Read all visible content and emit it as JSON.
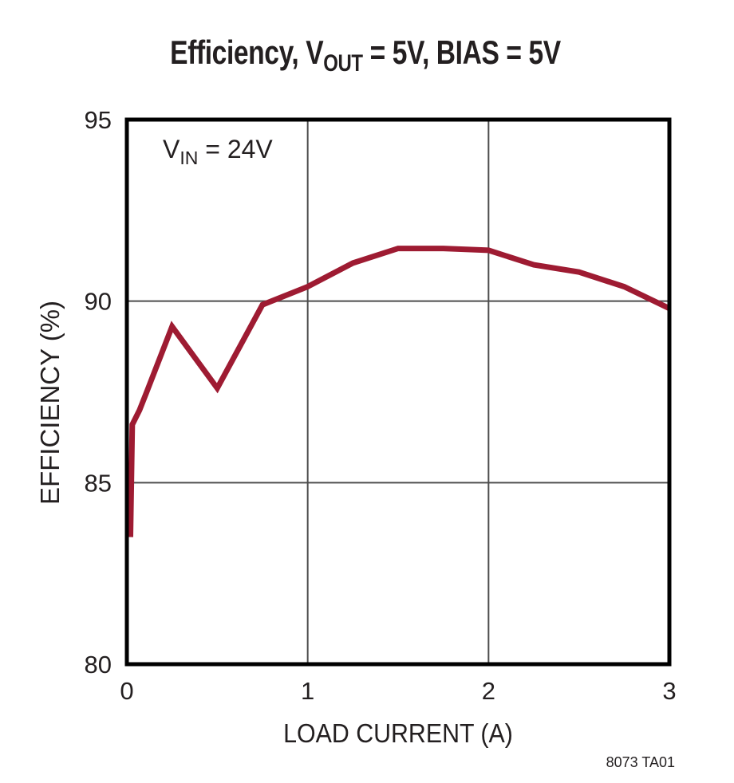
{
  "colors": {
    "accent_curve": "#9e1b32",
    "text": "#231f20",
    "grid": "#4d4d4d",
    "border": "#000000",
    "background": "#ffffff"
  },
  "chart_data": {
    "type": "line",
    "title_plain": "Efficiency, VOUT = 5V, BIAS = 5V",
    "title_rich": [
      {
        "text": "Efficiency, V"
      },
      {
        "text": "OUT",
        "sub": true
      },
      {
        "text": " = 5V, BIAS = 5V"
      }
    ],
    "annotation_plain": "VIN = 24V",
    "annotation_rich": [
      {
        "text": "V"
      },
      {
        "text": "IN",
        "sub": true
      },
      {
        "text": " = 24V"
      }
    ],
    "xlabel": "LOAD CURRENT (A)",
    "ylabel": "EFFICIENCY (%)",
    "xlim": [
      0,
      3
    ],
    "ylim": [
      80,
      95
    ],
    "xticks": [
      "0",
      "1",
      "2",
      "3"
    ],
    "yticks": [
      "80",
      "85",
      "90",
      "95"
    ],
    "grid": true,
    "legend_position": "none",
    "footnote": "8073 TA01",
    "series": [
      {
        "name": "VIN = 24V",
        "color": "#9e1b32",
        "points": [
          [
            0.02,
            83.5
          ],
          [
            0.03,
            86.6
          ],
          [
            0.07,
            87.0
          ],
          [
            0.11,
            87.5
          ],
          [
            0.25,
            89.3
          ],
          [
            0.5,
            87.6
          ],
          [
            0.75,
            89.9
          ],
          [
            1.0,
            90.4
          ],
          [
            1.25,
            91.05
          ],
          [
            1.5,
            91.45
          ],
          [
            1.75,
            91.45
          ],
          [
            2.0,
            91.4
          ],
          [
            2.25,
            91.0
          ],
          [
            2.5,
            90.8
          ],
          [
            2.75,
            90.4
          ],
          [
            3.0,
            89.8
          ]
        ]
      }
    ]
  }
}
